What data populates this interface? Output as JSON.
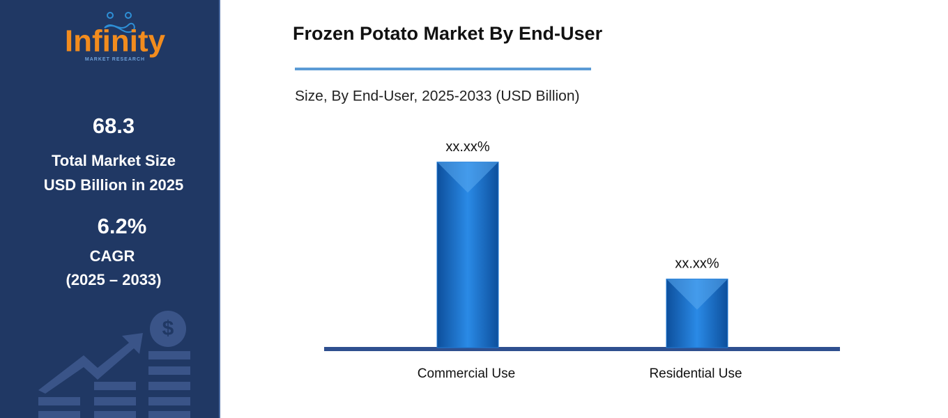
{
  "sidebar": {
    "logo": "Infinity",
    "logo_tagline": "MARKET RESEARCH",
    "market_size": "68.3",
    "market_size_label_1": "Total Market Size",
    "market_size_label_2": "USD Billion in 2025",
    "cagr": "6.2%",
    "cagr_label": "CAGR",
    "cagr_period": "(2025 – 2033)"
  },
  "chart_data": {
    "type": "bar",
    "title": "Frozen Potato Market By End-User",
    "subtitle": "Size, By End-User, 2025-2033 (USD Billion)",
    "categories": [
      "Commercial Use",
      "Residential Use"
    ],
    "values": [
      73,
      27
    ],
    "value_labels": [
      "xx.xx%",
      "xx.xx%"
    ],
    "color": "#1f7ad6"
  }
}
